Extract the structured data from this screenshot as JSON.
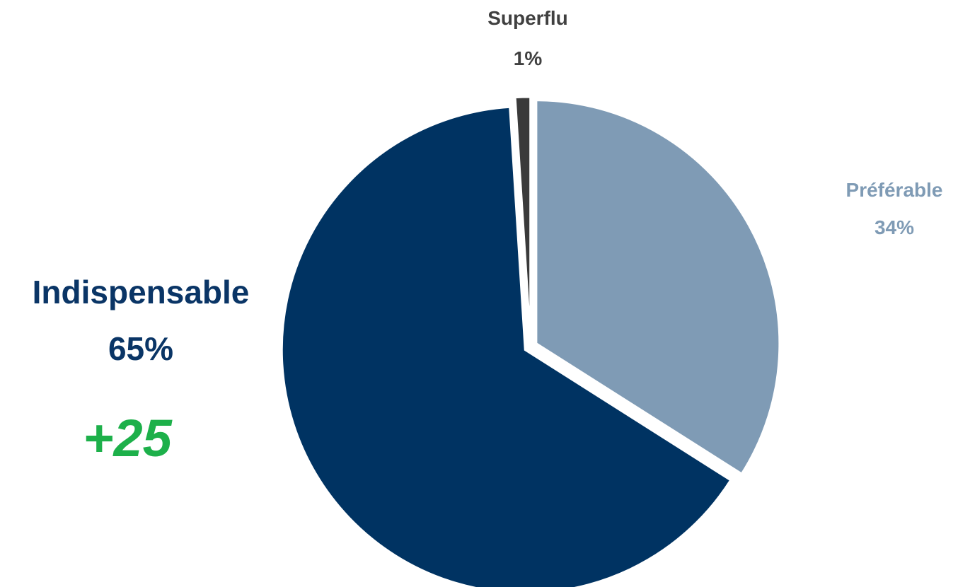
{
  "chart_data": {
    "type": "pie",
    "slices": [
      {
        "label": "Préférable",
        "value": 34,
        "value_label": "34%",
        "color": "#7f9bb5",
        "label_color": "#7f9bb5"
      },
      {
        "label": "Indispensable",
        "value": 65,
        "value_label": "65%",
        "color": "#003362",
        "label_color": "#0a3566"
      },
      {
        "label": "Superflu",
        "value": 1,
        "value_label": "1%",
        "color": "#3a3a3a",
        "label_color": "#404040"
      }
    ],
    "annotation": {
      "text": "+25",
      "color": "#1db04a"
    },
    "start_angle_deg": 0,
    "direction": "clockwise"
  }
}
